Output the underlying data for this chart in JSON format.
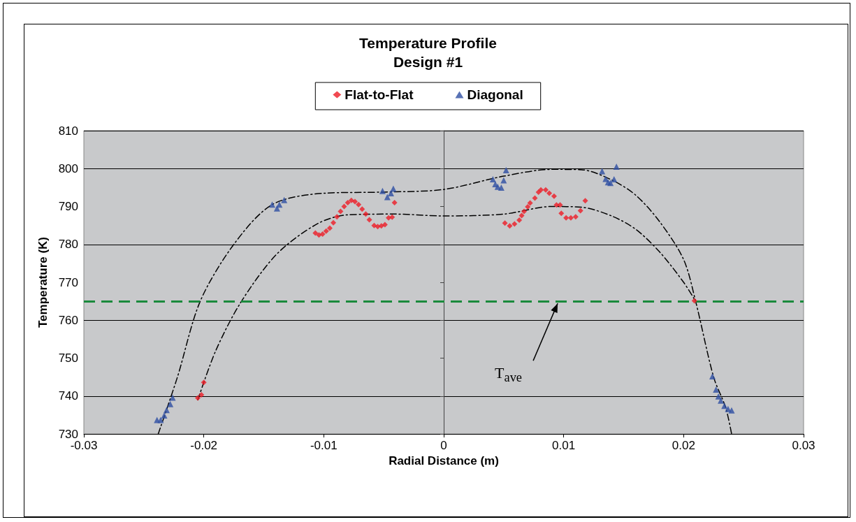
{
  "chart_data": {
    "type": "scatter",
    "title": "Temperature Profile",
    "subtitle": "Design #1",
    "xlabel": "Radial Distance (m)",
    "ylabel": "Temperature (K)",
    "xlim": [
      -0.03,
      0.03
    ],
    "xticks": [
      -0.03,
      -0.02,
      -0.01,
      0,
      0.01,
      0.02,
      0.03
    ],
    "ylim": [
      730,
      810
    ],
    "yticks": [
      730,
      740,
      750,
      760,
      770,
      780,
      790,
      800,
      810
    ],
    "grid": "y",
    "legend": "top",
    "series": [
      {
        "name": "Flat-to-Flat",
        "color": "#ee1c25",
        "marker": "diamond",
        "x": [
          -0.0205,
          -0.0202,
          -0.02,
          -0.0107,
          -0.0104,
          -0.0101,
          -0.0098,
          -0.0095,
          -0.0092,
          -0.0089,
          -0.0086,
          -0.0083,
          -0.008,
          -0.0077,
          -0.0074,
          -0.0071,
          -0.0068,
          -0.0065,
          -0.0062,
          -0.0058,
          -0.0055,
          -0.0052,
          -0.0049,
          -0.0046,
          -0.0043,
          -0.0041,
          0.0051,
          0.0055,
          0.0059,
          0.0063,
          0.0065,
          0.0067,
          0.007,
          0.0072,
          0.0076,
          0.0079,
          0.0081,
          0.0085,
          0.0088,
          0.0092,
          0.0094,
          0.0097,
          0.0098,
          0.0102,
          0.0106,
          0.011,
          0.0114,
          0.0118,
          0.0209
        ],
        "values": [
          739.5,
          740.3,
          743.6,
          783.0,
          782.5,
          782.7,
          783.5,
          784.3,
          785.7,
          787.3,
          788.7,
          790.0,
          791.0,
          791.6,
          791.3,
          790.5,
          789.3,
          788.0,
          786.5,
          785.0,
          784.7,
          784.9,
          785.2,
          787.0,
          787.2,
          791.0,
          785.6,
          784.9,
          785.4,
          786.4,
          787.6,
          788.7,
          789.9,
          790.9,
          792.2,
          793.8,
          794.4,
          794.4,
          793.5,
          792.7,
          790.4,
          790.4,
          788.2,
          787.0,
          787.0,
          787.3,
          788.9,
          791.5,
          765.1
        ]
      },
      {
        "name": "Diagonal",
        "color": "#2e4fa3",
        "marker": "triangle",
        "x": [
          -0.0239,
          -0.0236,
          -0.0233,
          -0.0231,
          -0.0228,
          -0.0226,
          -0.0143,
          -0.0139,
          -0.0137,
          -0.0133,
          -0.0051,
          -0.0047,
          -0.0044,
          -0.0042,
          0.0041,
          0.0043,
          0.0045,
          0.0048,
          0.005,
          0.0052,
          0.0132,
          0.0135,
          0.0137,
          0.0139,
          0.0142,
          0.0144,
          0.0224,
          0.0227,
          0.0229,
          0.0231,
          0.0234,
          0.0237,
          0.024
        ],
        "values": [
          733.7,
          733.7,
          734.9,
          736.3,
          737.9,
          739.6,
          790.5,
          789.5,
          790.5,
          791.7,
          794.1,
          792.5,
          793.5,
          794.7,
          797.2,
          795.9,
          795.2,
          795.0,
          796.9,
          799.6,
          799.3,
          797.3,
          796.4,
          796.2,
          797.2,
          800.5,
          745.2,
          741.7,
          739.9,
          738.8,
          737.4,
          736.6,
          736.2
        ]
      },
      {
        "type": "line",
        "color": "#000000",
        "marker": "none",
        "line_style": "dashed",
        "x": [
          -0.0238,
          -0.0222,
          -0.0203,
          -0.0175,
          -0.0143,
          -0.01,
          -0.005,
          0,
          0.005,
          0.009,
          0.0115,
          0.014,
          0.016,
          0.018,
          0.02,
          0.021,
          0.0225,
          0.0235,
          0.024
        ],
        "values": [
          730,
          745,
          765,
          780,
          790.5,
          793.5,
          793.8,
          794.5,
          798,
          799.8,
          799.7,
          797,
          793,
          786,
          776,
          765,
          745,
          737,
          730
        ]
      },
      {
        "type": "line",
        "color": "#000000",
        "marker": "none",
        "line_style": "dashed",
        "x": [
          -0.0205,
          -0.019,
          -0.0169,
          -0.0139,
          -0.0105,
          -0.008,
          -0.004,
          0,
          0.005,
          0.009,
          0.0115,
          0.014,
          0.016,
          0.018,
          0.02,
          0.021
        ],
        "values": [
          739,
          752,
          764.8,
          777.5,
          785.5,
          787.8,
          788,
          787.5,
          788,
          790,
          789.8,
          787.5,
          784,
          778,
          770,
          765
        ]
      }
    ],
    "ref_lines": [
      {
        "axis": "y",
        "value": 765,
        "color": "#1a8a3c",
        "line_style": "dashed"
      }
    ],
    "annotations": [
      {
        "text": "T$_{ave}$",
        "x": 0.0095,
        "y": 765
      }
    ]
  }
}
